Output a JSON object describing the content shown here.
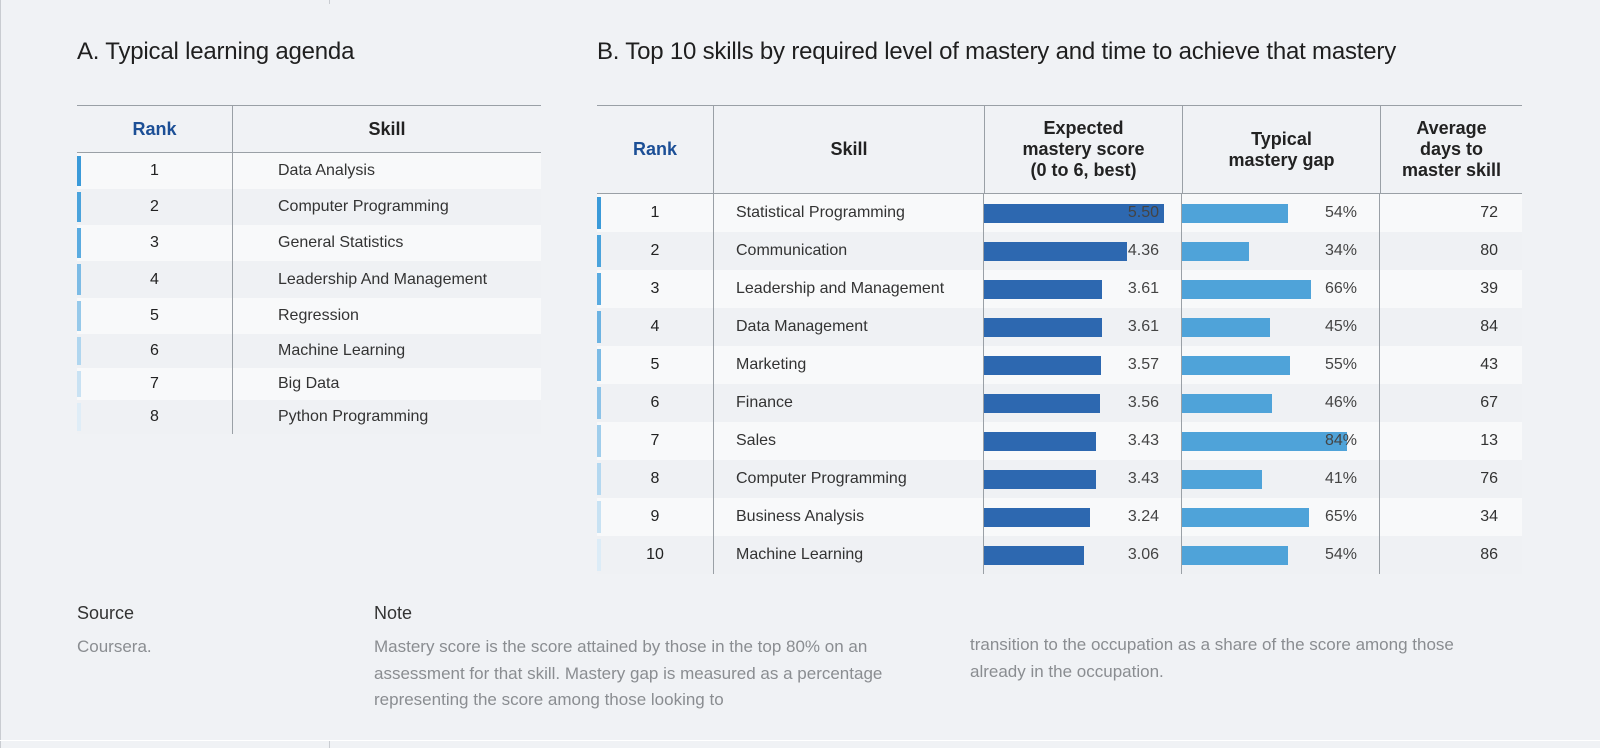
{
  "section_a": {
    "title": "A. Typical learning agenda",
    "columns": [
      "Rank",
      "Skill"
    ],
    "rows": [
      {
        "rank": "1",
        "skill": "Data Analysis",
        "accent": "#3a9ad9"
      },
      {
        "rank": "2",
        "skill": "Computer Programming",
        "accent": "#4aa3dc"
      },
      {
        "rank": "3",
        "skill": "General Statistics",
        "accent": "#5aabe0"
      },
      {
        "rank": "4",
        "skill": "Leadership And Management",
        "accent": "#7cbbe5"
      },
      {
        "rank": "5",
        "skill": "Regression",
        "accent": "#96c9ea"
      },
      {
        "rank": "6",
        "skill": "Machine Learning",
        "accent": "#b0d6ef"
      },
      {
        "rank": "7",
        "skill": "Big Data",
        "accent": "#c9e2f3"
      },
      {
        "rank": "8",
        "skill": "Python Programming",
        "accent": "#dfedf7"
      }
    ]
  },
  "section_b": {
    "title": "B. Top 10 skills by required level of mastery and time to achieve that mastery",
    "columns": {
      "rank": "Rank",
      "skill": "Skill",
      "score": "Expected mastery score (0 to 6, best)",
      "gap": "Typical mastery gap",
      "days": "Average days to master skill"
    },
    "score_max": 6,
    "rows": [
      {
        "rank": "1",
        "skill": "Statistical Programming",
        "score": 5.5,
        "score_label": "5.50",
        "gap": 0.54,
        "gap_label": "54%",
        "days": "72",
        "accent": "#3a9ad9"
      },
      {
        "rank": "2",
        "skill": "Communication",
        "score": 4.36,
        "score_label": "4.36",
        "gap": 0.34,
        "gap_label": "34%",
        "days": "80",
        "accent": "#4aa3dc"
      },
      {
        "rank": "3",
        "skill": "Leadership and Management",
        "score": 3.61,
        "score_label": "3.61",
        "gap": 0.66,
        "gap_label": "66%",
        "days": "39",
        "accent": "#5aabe0"
      },
      {
        "rank": "4",
        "skill": "Data Management",
        "score": 3.61,
        "score_label": "3.61",
        "gap": 0.45,
        "gap_label": "45%",
        "days": "84",
        "accent": "#6cb3e2"
      },
      {
        "rank": "5",
        "skill": "Marketing",
        "score": 3.57,
        "score_label": "3.57",
        "gap": 0.55,
        "gap_label": "55%",
        "days": "43",
        "accent": "#7cbbe5"
      },
      {
        "rank": "6",
        "skill": "Finance",
        "score": 3.56,
        "score_label": "3.56",
        "gap": 0.46,
        "gap_label": "46%",
        "days": "67",
        "accent": "#8cc3e8"
      },
      {
        "rank": "7",
        "skill": "Sales",
        "score": 3.43,
        "score_label": "3.43",
        "gap": 0.84,
        "gap_label": "84%",
        "days": "13",
        "accent": "#a0ceec"
      },
      {
        "rank": "8",
        "skill": "Computer Programming",
        "score": 3.43,
        "score_label": "3.43",
        "gap": 0.41,
        "gap_label": "41%",
        "days": "76",
        "accent": "#b4d8f0"
      },
      {
        "rank": "9",
        "skill": "Business Analysis",
        "score": 3.24,
        "score_label": "3.24",
        "gap": 0.65,
        "gap_label": "65%",
        "days": "34",
        "accent": "#c8e2f3"
      },
      {
        "rank": "10",
        "skill": "Machine Learning",
        "score": 3.06,
        "score_label": "3.06",
        "gap": 0.54,
        "gap_label": "54%",
        "days": "86",
        "accent": "#dcecf7"
      }
    ]
  },
  "footer": {
    "source_label": "Source",
    "source_text": "Coursera.",
    "note_label": "Note",
    "note_col1": "Mastery score is the score attained by those in the top 80% on an assessment for that skill.  Mastery gap is measured as a percentage representing the score among those looking to",
    "note_col2": "transition to the occupation as a share of the score among those already in the occupation."
  },
  "colors": {
    "score_bar": "#2d68b0",
    "gap_bar": "#4fa3d9",
    "rank_header": "#1c4f96"
  }
}
